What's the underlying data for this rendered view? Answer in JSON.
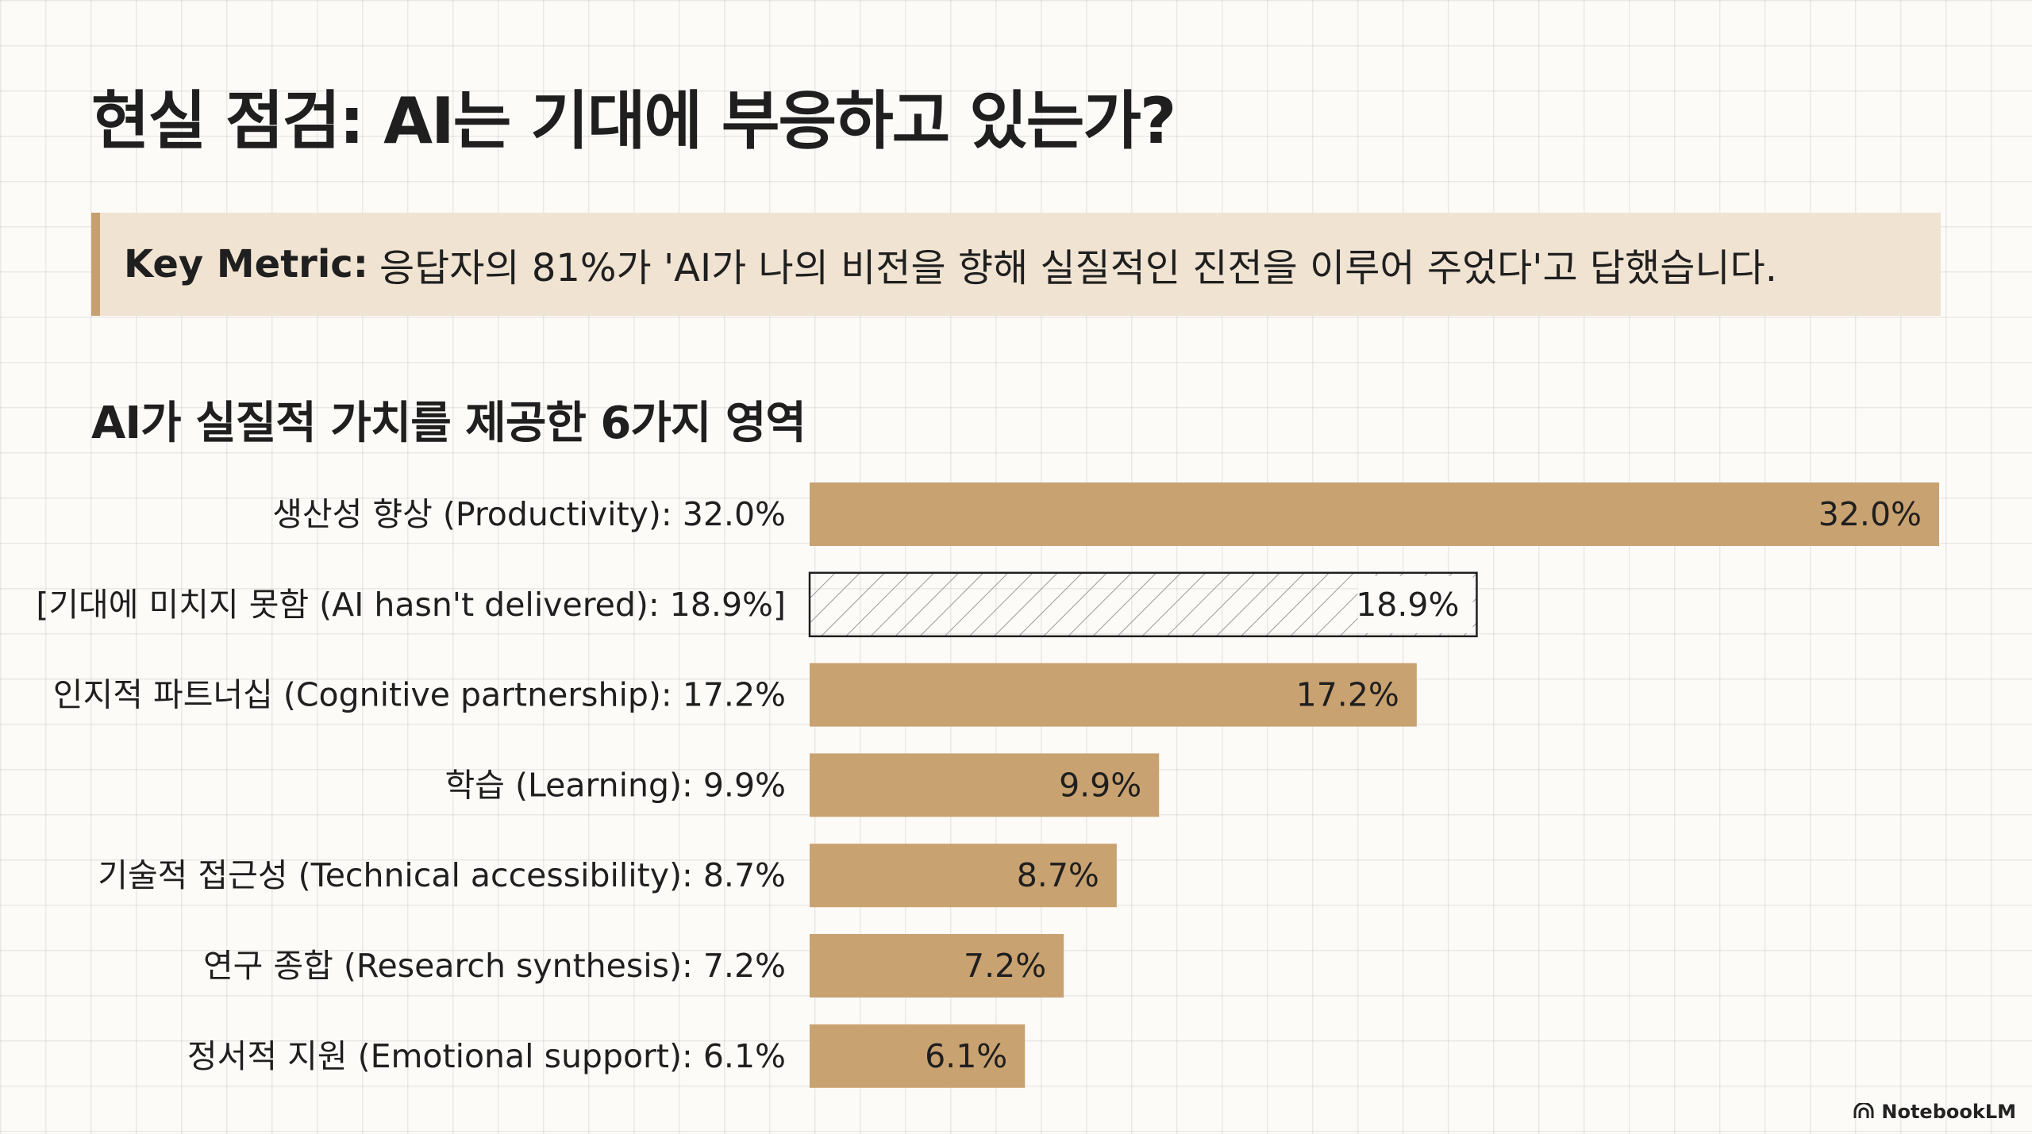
{
  "title": "현실 점검: AI는 기대에 부응하고 있는가?",
  "callout": {
    "label": "Key Metric:",
    "text": "응답자의 81%가 'AI가 나의 비전을 향해 실질적인 진전을 이루어 주었다'고 답했습니다."
  },
  "brand": "NotebookLM",
  "colors": {
    "bar": "#c9a271",
    "callout_bg": "#f0e3d2",
    "callout_border": "#c89f70",
    "hatched_stroke": "#1f1f1f"
  },
  "chart_data": {
    "type": "bar",
    "orientation": "horizontal",
    "title": "AI가 실질적 가치를 제공한 6가지 영역",
    "xlim": [
      0,
      32
    ],
    "grid": true,
    "categories": [
      "생산성 향상 (Productivity): 32.0%",
      "[기대에 미치지 못함 (AI hasn't delivered): 18.9%]",
      "인지적 파트너십 (Cognitive partnership): 17.2%",
      "학습 (Learning): 9.9%",
      "기술적 접근성 (Technical accessibility): 8.7%",
      "연구 종합 (Research synthesis): 7.2%",
      "정서적 지원 (Emotional support): 6.1%"
    ],
    "values": [
      32.0,
      18.9,
      17.2,
      9.9,
      8.7,
      7.2,
      6.1
    ],
    "value_labels": [
      "32.0%",
      "18.9%",
      "17.2%",
      "9.9%",
      "8.7%",
      "7.2%",
      "6.1%"
    ],
    "hatched": [
      false,
      true,
      false,
      false,
      false,
      false,
      false
    ]
  }
}
